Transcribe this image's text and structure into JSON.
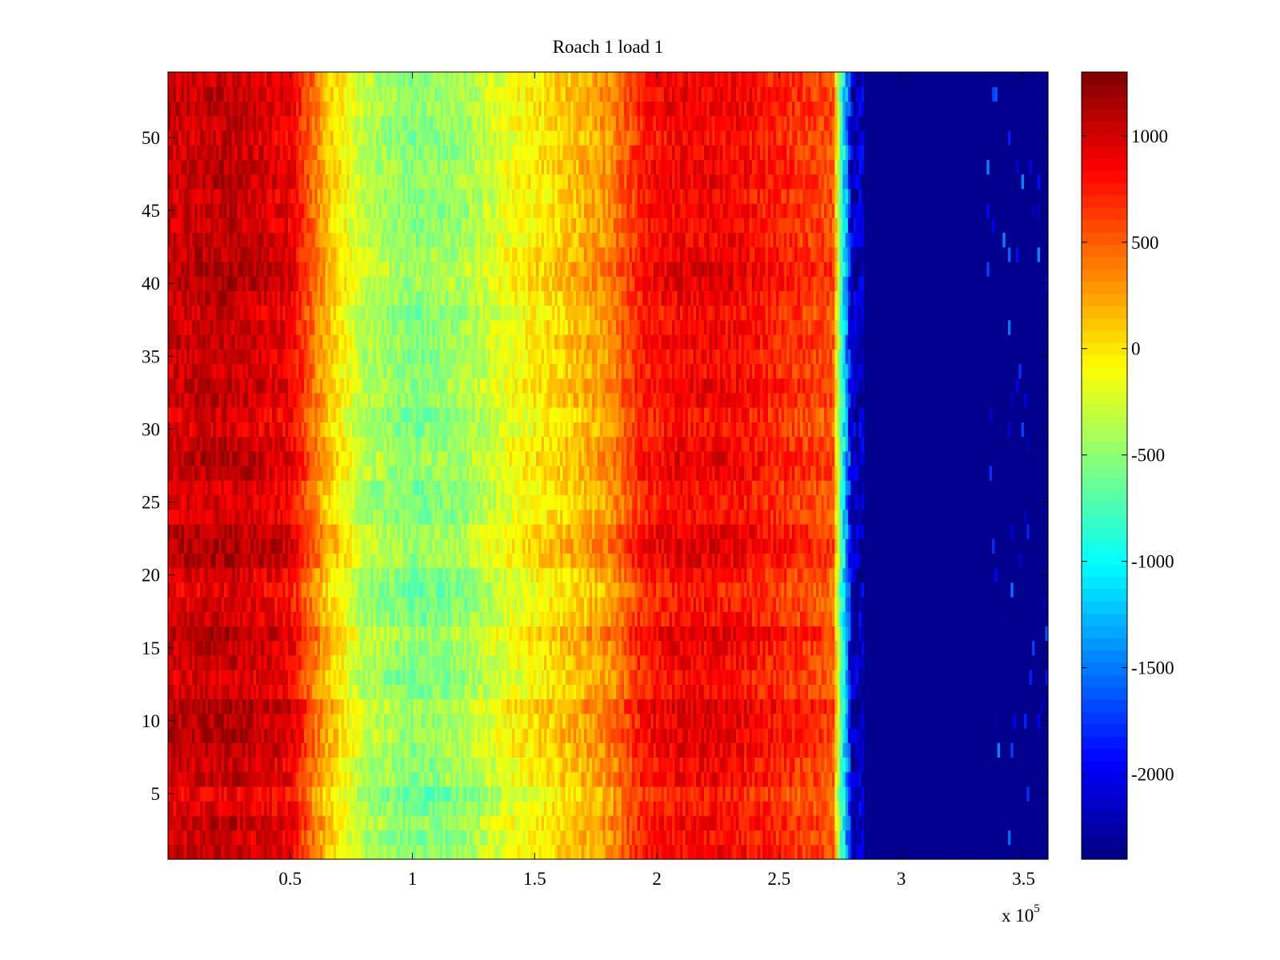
{
  "chart_data": {
    "type": "heatmap",
    "title": "Roach 1 load 1",
    "xlabel": "",
    "ylabel": "",
    "x_exponent_label": "x 10",
    "x_exponent_power": "5",
    "xlim": [
      0,
      3.6
    ],
    "ylim": [
      0.5,
      54.5
    ],
    "x_ticks": [
      0.5,
      1,
      1.5,
      2,
      2.5,
      3,
      3.5
    ],
    "x_tick_labels": [
      "0.5",
      "1",
      "1.5",
      "2",
      "2.5",
      "3",
      "3.5"
    ],
    "y_ticks": [
      5,
      10,
      15,
      20,
      25,
      30,
      35,
      40,
      45,
      50
    ],
    "y_tick_labels": [
      "5",
      "10",
      "15",
      "20",
      "25",
      "30",
      "35",
      "40",
      "45",
      "50"
    ],
    "rows": 54,
    "colorbar": {
      "clim": [
        -2400,
        1300
      ],
      "ticks": [
        -2000,
        -1500,
        -1000,
        -500,
        0,
        500,
        1000
      ],
      "tick_labels": [
        "-2000",
        "-1500",
        "-1000",
        "-500",
        "0",
        "500",
        "1000"
      ],
      "colormap": "jet"
    },
    "band_profile": {
      "description_units": "x in units of 10^5, value in colorbar units",
      "x": [
        0,
        0.25,
        0.5,
        0.55,
        0.65,
        0.8,
        1.0,
        1.2,
        1.4,
        1.6,
        1.8,
        1.95,
        2.1,
        2.3,
        2.5,
        2.72,
        2.76,
        2.8,
        3.6
      ],
      "value": [
        1000,
        1050,
        900,
        650,
        150,
        -350,
        -550,
        -450,
        -150,
        50,
        300,
        750,
        850,
        850,
        700,
        550,
        -1000,
        -2350,
        -2350
      ]
    },
    "row_offsets": [
      100,
      60,
      120,
      30,
      -40,
      110,
      80,
      150,
      170,
      140,
      220,
      60,
      30,
      90,
      120,
      200,
      50,
      20,
      -30,
      40,
      160,
      200,
      170,
      60,
      30,
      40,
      120,
      150,
      100,
      40,
      20,
      110,
      140,
      80,
      70,
      130,
      90,
      60,
      120,
      180,
      200,
      150,
      110,
      90,
      100,
      80,
      140,
      120,
      90,
      60,
      100,
      140,
      120,
      100
    ],
    "noise_amplitude": 180
  }
}
